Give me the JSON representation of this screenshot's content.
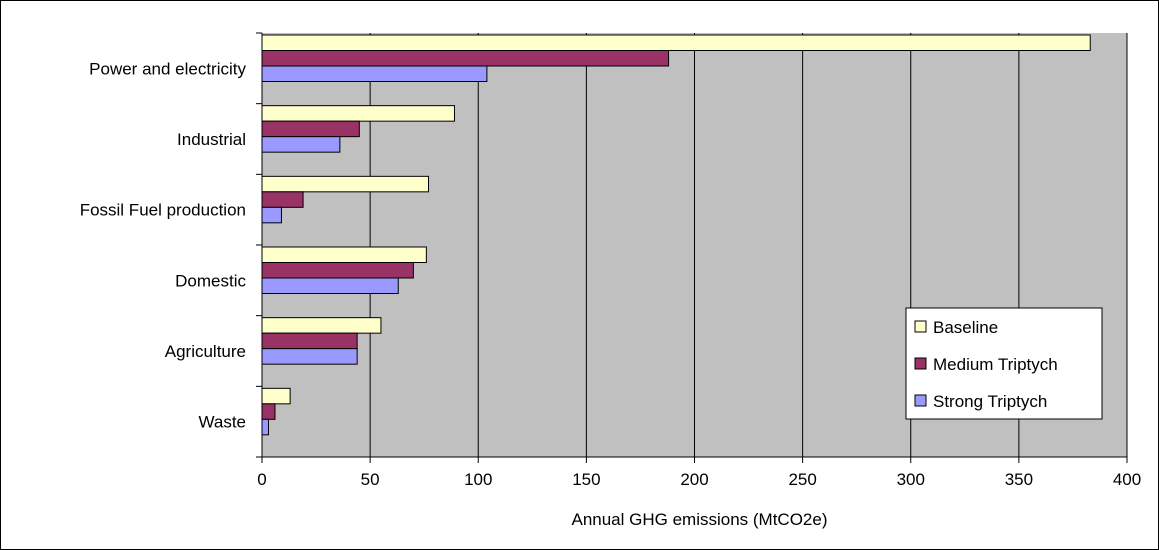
{
  "chart_data": {
    "type": "bar",
    "orientation": "horizontal",
    "categories": [
      "Power and electricity",
      "Industrial",
      "Fossil Fuel production",
      "Domestic",
      "Agriculture",
      "Waste"
    ],
    "series": [
      {
        "name": "Baseline",
        "color": "#ffffcc",
        "values": [
          383,
          89,
          77,
          76,
          55,
          13
        ]
      },
      {
        "name": "Medium Triptych",
        "color": "#993366",
        "values": [
          188,
          45,
          19,
          70,
          44,
          6
        ]
      },
      {
        "name": "Strong Triptych",
        "color": "#9999ff",
        "values": [
          104,
          36,
          9,
          63,
          44,
          3
        ]
      }
    ],
    "xlabel": "Annual GHG emissions (MtCO2e)",
    "ylabel": "",
    "xlim": [
      0,
      400
    ],
    "xticks": [
      0,
      50,
      100,
      150,
      200,
      250,
      300,
      350,
      400
    ],
    "grid": true,
    "plot_background": "#c0c0c0",
    "legend_position": "bottom-right"
  }
}
